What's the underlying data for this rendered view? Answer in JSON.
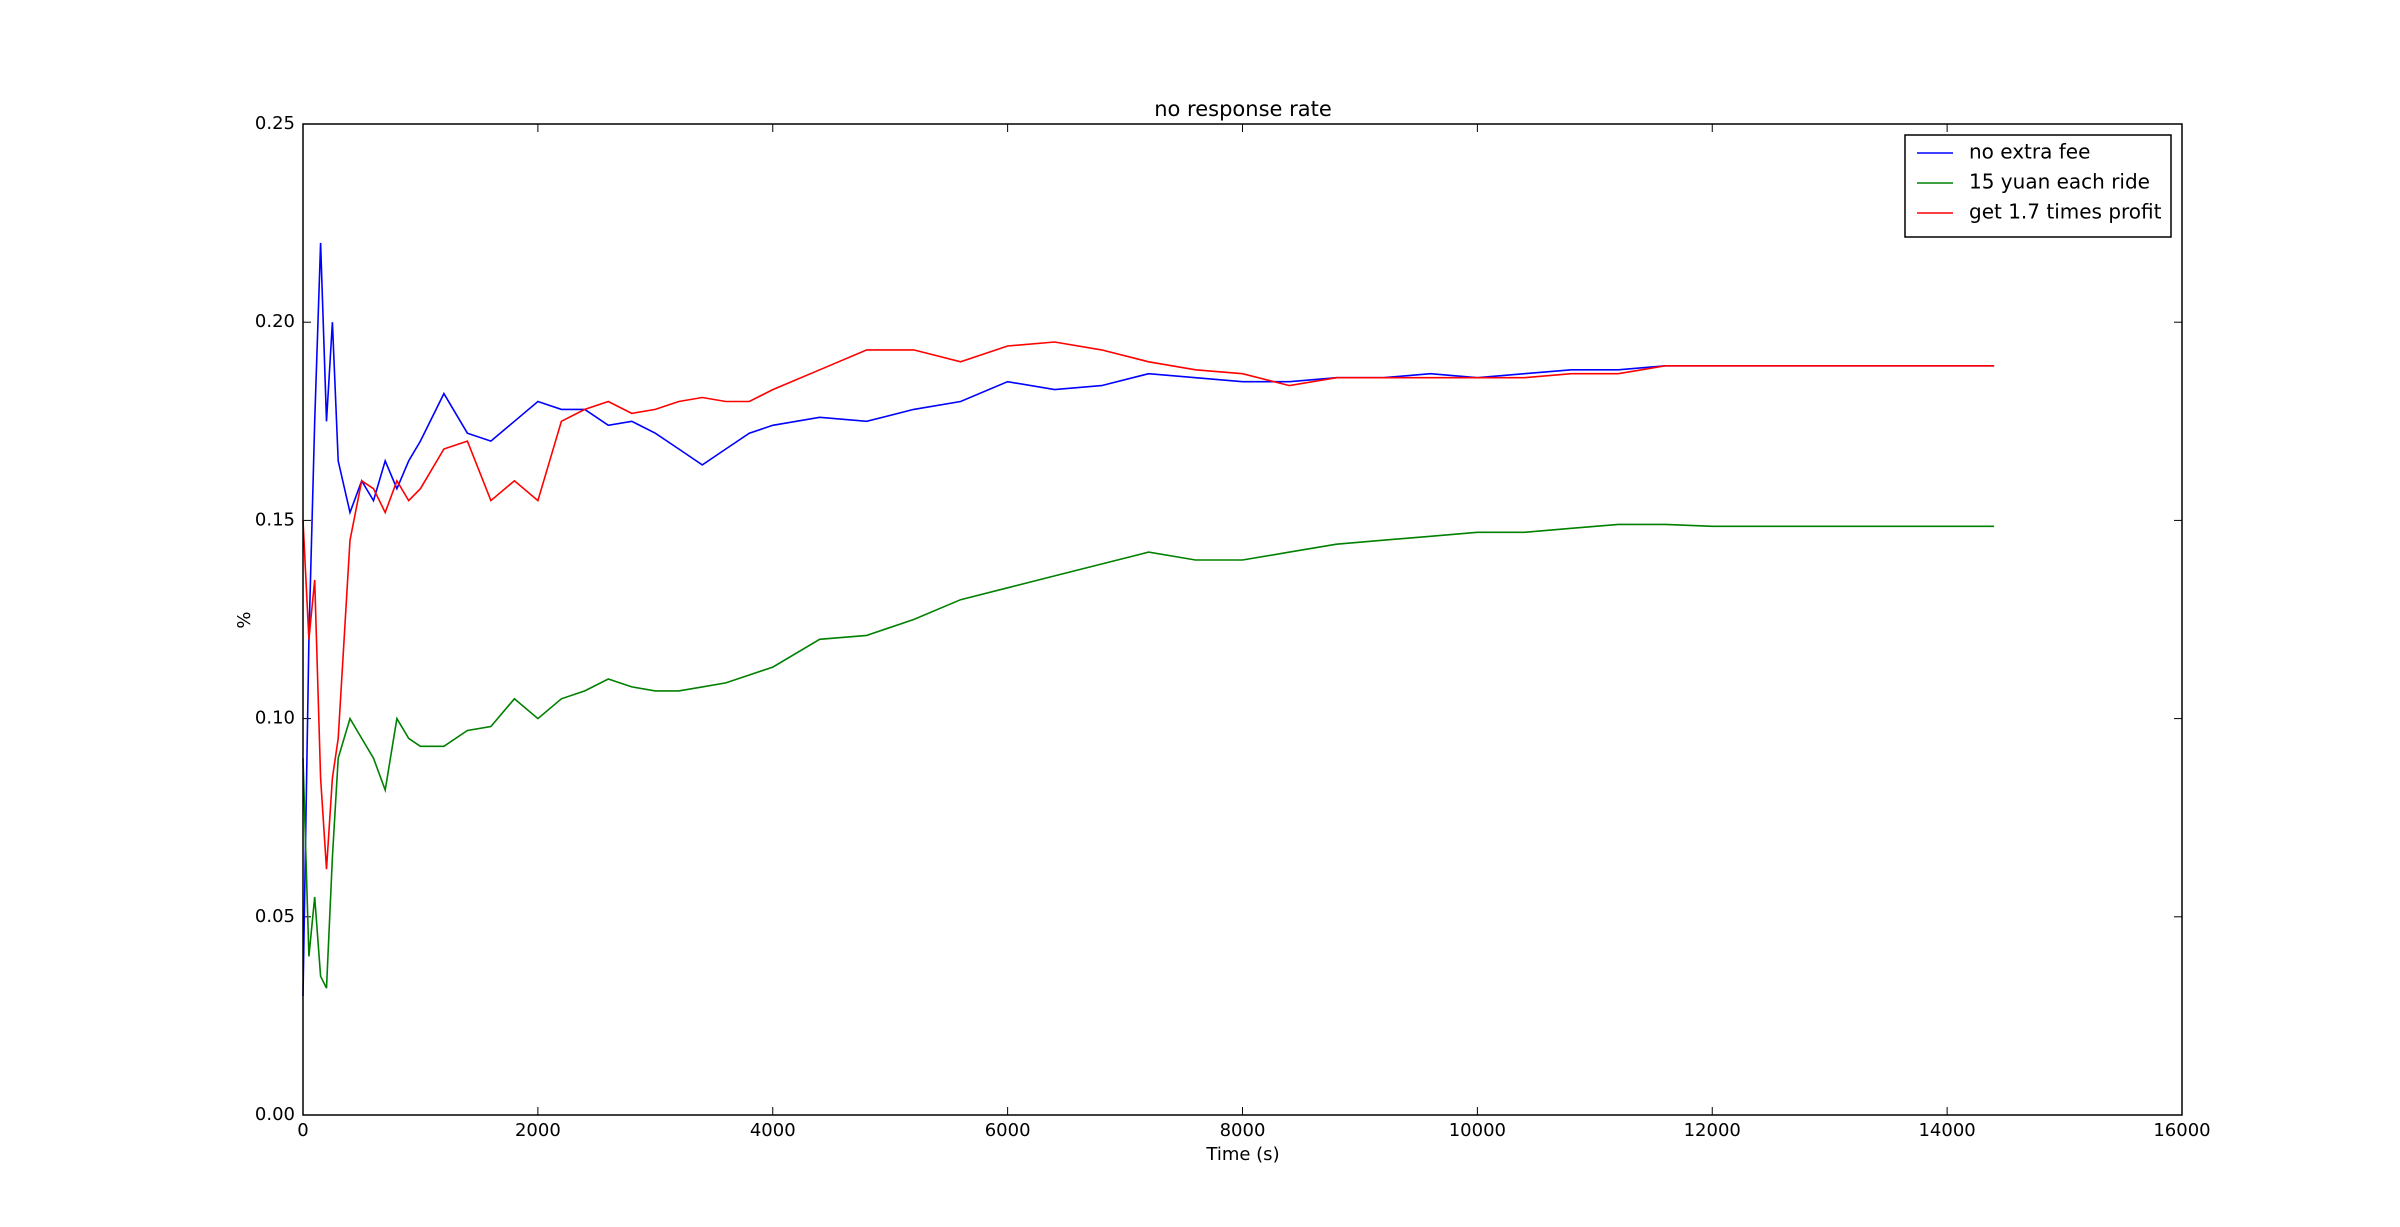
{
  "chart_data": {
    "type": "line",
    "title": "no response rate",
    "xlabel": "Time (s)",
    "ylabel": "%",
    "x": [
      0,
      50,
      100,
      150,
      200,
      250,
      300,
      400,
      500,
      600,
      700,
      800,
      900,
      1000,
      1200,
      1400,
      1600,
      1800,
      2000,
      2200,
      2400,
      2600,
      2800,
      3000,
      3200,
      3400,
      3600,
      3800,
      4000,
      4400,
      4800,
      5200,
      5600,
      6000,
      6400,
      6800,
      7200,
      7600,
      8000,
      8400,
      8800,
      9200,
      9600,
      10000,
      10400,
      10800,
      11200,
      11600,
      12000,
      13000,
      14400
    ],
    "series": [
      {
        "name": "no extra fee",
        "color": "#0000ff",
        "values": [
          0.03,
          0.12,
          0.175,
          0.22,
          0.175,
          0.2,
          0.165,
          0.152,
          0.16,
          0.155,
          0.165,
          0.158,
          0.165,
          0.17,
          0.182,
          0.172,
          0.17,
          0.175,
          0.18,
          0.178,
          0.178,
          0.174,
          0.175,
          0.172,
          0.168,
          0.164,
          0.168,
          0.172,
          0.174,
          0.176,
          0.175,
          0.178,
          0.18,
          0.185,
          0.183,
          0.184,
          0.187,
          0.186,
          0.185,
          0.185,
          0.186,
          0.186,
          0.187,
          0.186,
          0.187,
          0.188,
          0.188,
          0.189,
          0.189,
          0.189,
          0.189
        ]
      },
      {
        "name": "15 yuan each ride",
        "color": "#008000",
        "values": [
          0.09,
          0.04,
          0.055,
          0.035,
          0.032,
          0.065,
          0.09,
          0.1,
          0.095,
          0.09,
          0.082,
          0.1,
          0.095,
          0.093,
          0.093,
          0.097,
          0.098,
          0.105,
          0.1,
          0.105,
          0.107,
          0.11,
          0.108,
          0.107,
          0.107,
          0.108,
          0.109,
          0.111,
          0.113,
          0.12,
          0.121,
          0.125,
          0.13,
          0.133,
          0.136,
          0.139,
          0.142,
          0.14,
          0.14,
          0.142,
          0.144,
          0.145,
          0.146,
          0.147,
          0.147,
          0.148,
          0.149,
          0.149,
          0.1485,
          0.1485,
          0.1485
        ]
      },
      {
        "name": "get 1.7 times profit",
        "color": "#ff0000",
        "values": [
          0.15,
          0.12,
          0.135,
          0.085,
          0.062,
          0.085,
          0.095,
          0.145,
          0.16,
          0.158,
          0.152,
          0.16,
          0.155,
          0.158,
          0.168,
          0.17,
          0.155,
          0.16,
          0.155,
          0.175,
          0.178,
          0.18,
          0.177,
          0.178,
          0.18,
          0.181,
          0.18,
          0.18,
          0.183,
          0.188,
          0.193,
          0.193,
          0.19,
          0.194,
          0.195,
          0.193,
          0.19,
          0.188,
          0.187,
          0.184,
          0.186,
          0.186,
          0.186,
          0.186,
          0.186,
          0.187,
          0.187,
          0.189,
          0.189,
          0.189,
          0.189
        ]
      }
    ],
    "xlim": [
      0,
      16000
    ],
    "xticks": [
      0,
      2000,
      4000,
      6000,
      8000,
      10000,
      12000,
      14000,
      16000
    ],
    "ylim": [
      0,
      0.25
    ],
    "yticks": [
      {
        "value": 0,
        "label": "0.00"
      },
      0.05,
      {
        "value": 0.1,
        "label": "0.10"
      },
      0.15,
      {
        "value": 0.2,
        "label": "0.20"
      },
      0.25
    ],
    "legend": "upper right"
  }
}
